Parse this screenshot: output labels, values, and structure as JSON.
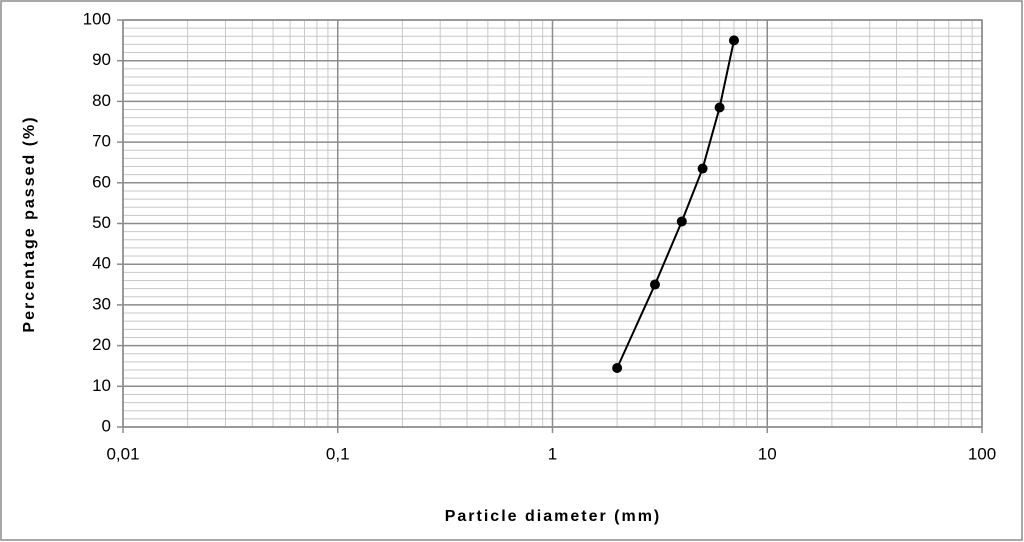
{
  "chart_data": {
    "type": "line",
    "xlabel": "Particle diameter (mm)",
    "ylabel": "Percentage passed (%)",
    "x": [
      2,
      3,
      4,
      5,
      6,
      7
    ],
    "series": [
      {
        "values": [
          14.5,
          35,
          50.5,
          63.5,
          78.5,
          95
        ],
        "color": "#000000"
      }
    ],
    "xscale": "log",
    "xlim": [
      0.01,
      100
    ],
    "xticks": [
      {
        "value": 0.01,
        "label": "0,01"
      },
      {
        "value": 0.1,
        "label": "0,1"
      },
      1,
      10,
      100
    ],
    "ylim": [
      0,
      100
    ],
    "yticks": [
      0,
      10,
      20,
      30,
      40,
      50,
      60,
      70,
      80,
      90,
      100
    ],
    "grid": true,
    "minor_grid": true
  }
}
